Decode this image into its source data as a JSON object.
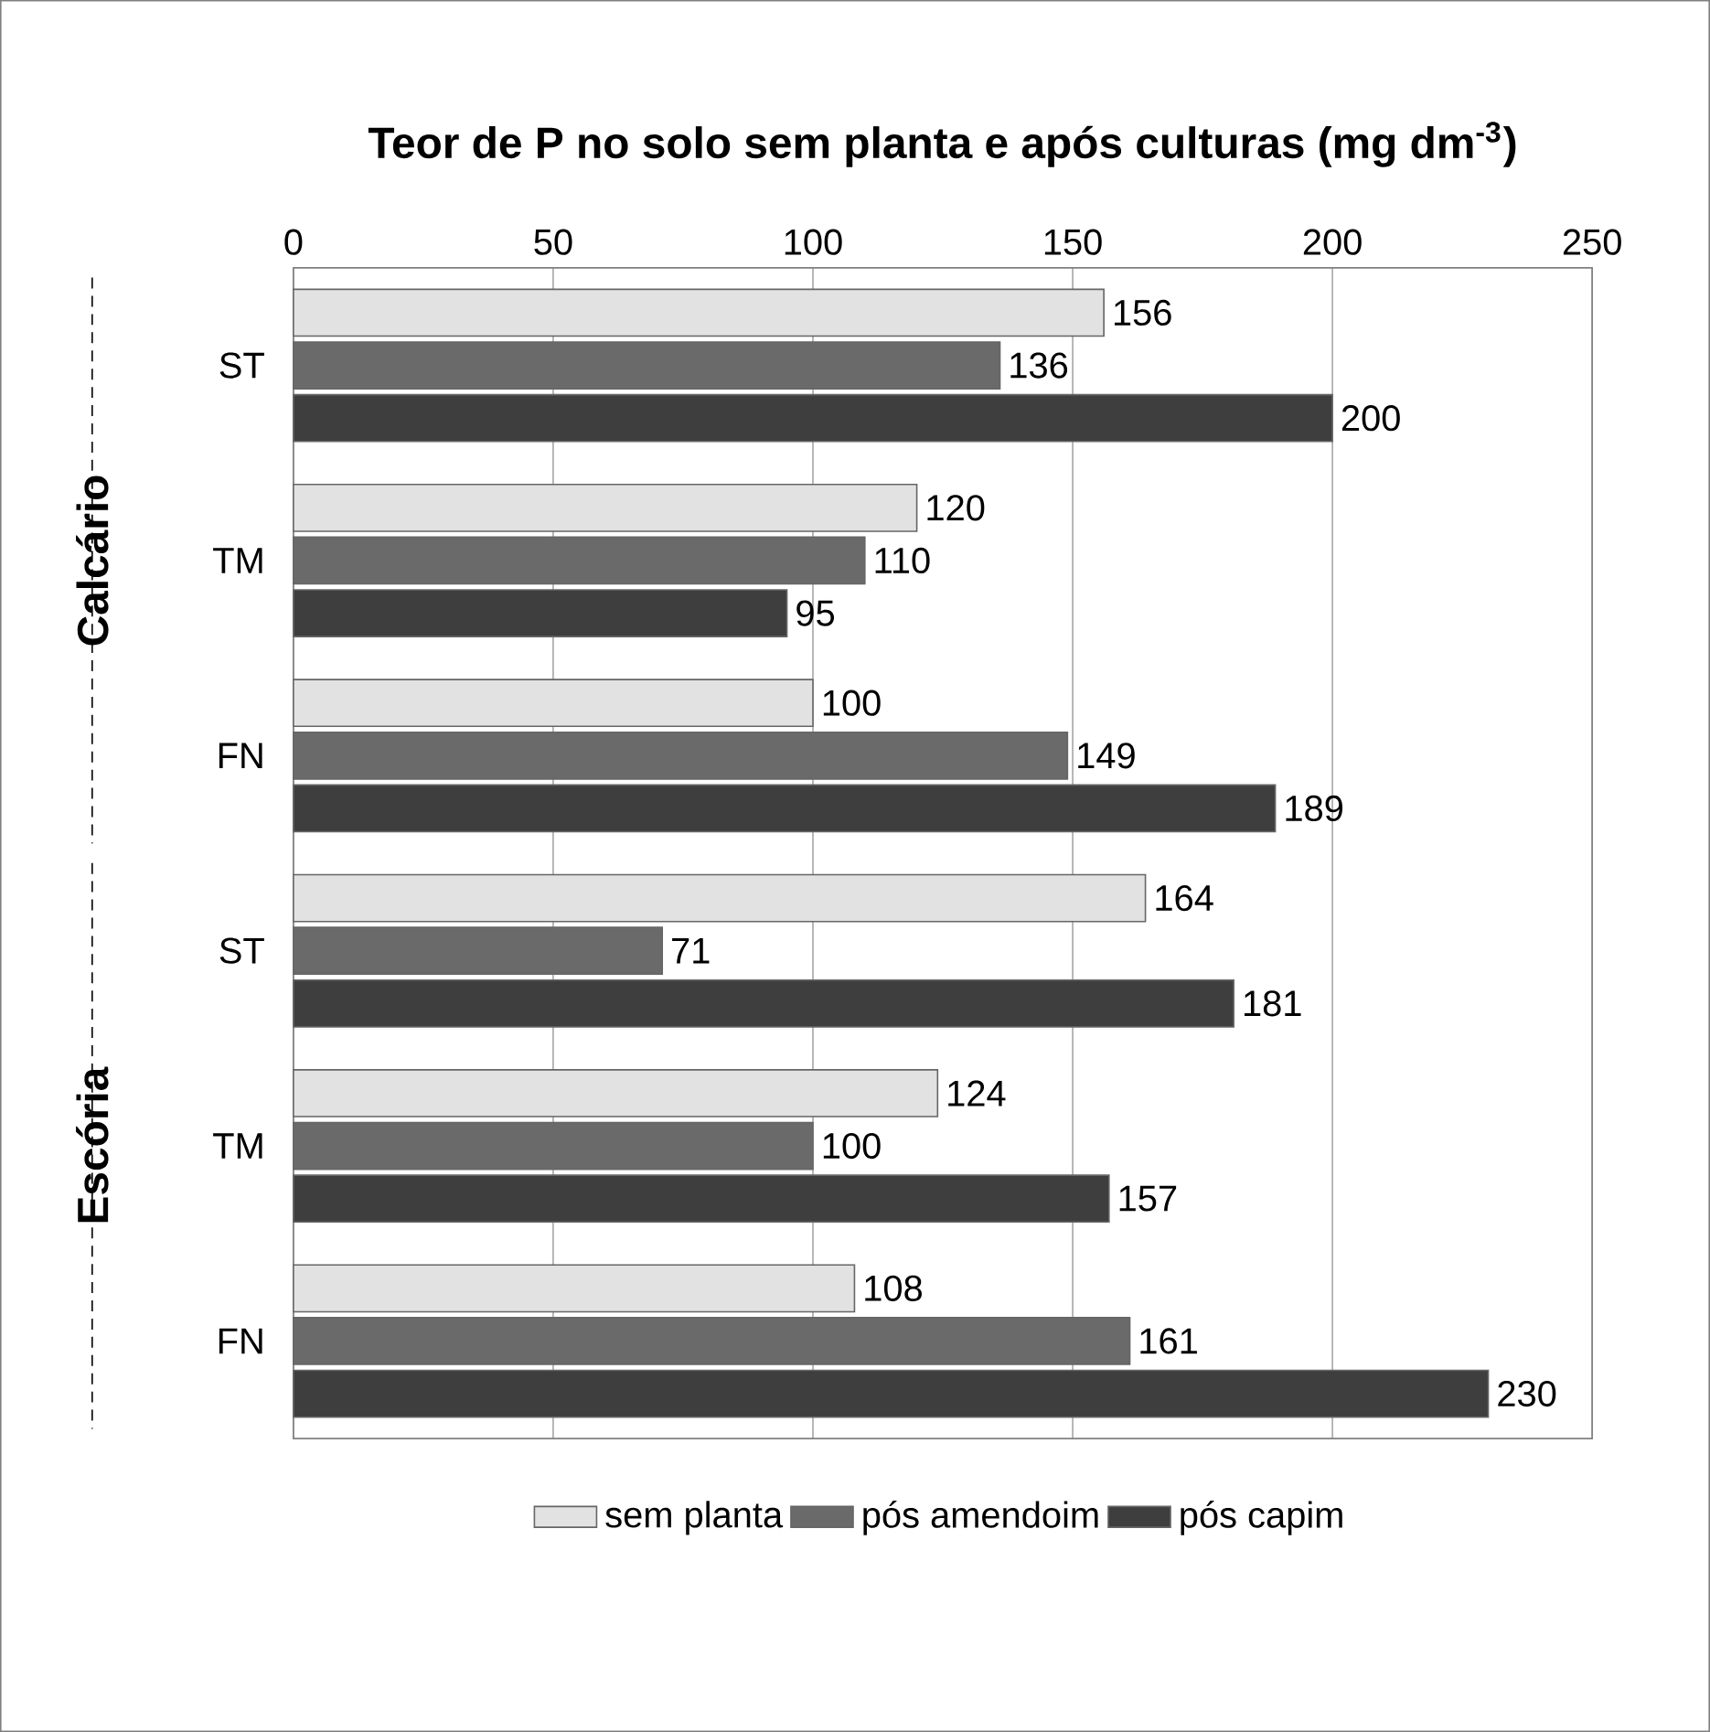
{
  "chart_data": {
    "type": "bar",
    "orientation": "horizontal",
    "title": "Teor de P no solo sem planta e após culturas (mg dm$^{-3}$)",
    "categories": [
      "ST",
      "TM",
      "FN",
      "ST",
      "TM",
      "FN"
    ],
    "series": [
      {
        "name": "sem planta",
        "color": "#e2e2e2",
        "values": [
          156,
          120,
          100,
          164,
          124,
          108
        ]
      },
      {
        "name": "pós amendoim",
        "color": "#6a6a6a",
        "values": [
          136,
          110,
          149,
          71,
          100,
          161
        ]
      },
      {
        "name": "pós capim",
        "color": "#3e3e3e",
        "values": [
          200,
          95,
          189,
          181,
          157,
          230
        ]
      }
    ],
    "annotations": [
      "Calcário",
      "Escória"
    ],
    "xlim": [
      0,
      250
    ],
    "xticks": [
      0,
      50,
      100,
      150,
      200,
      250
    ],
    "grid": "x",
    "legend": "bottom",
    "data_labels": true
  }
}
